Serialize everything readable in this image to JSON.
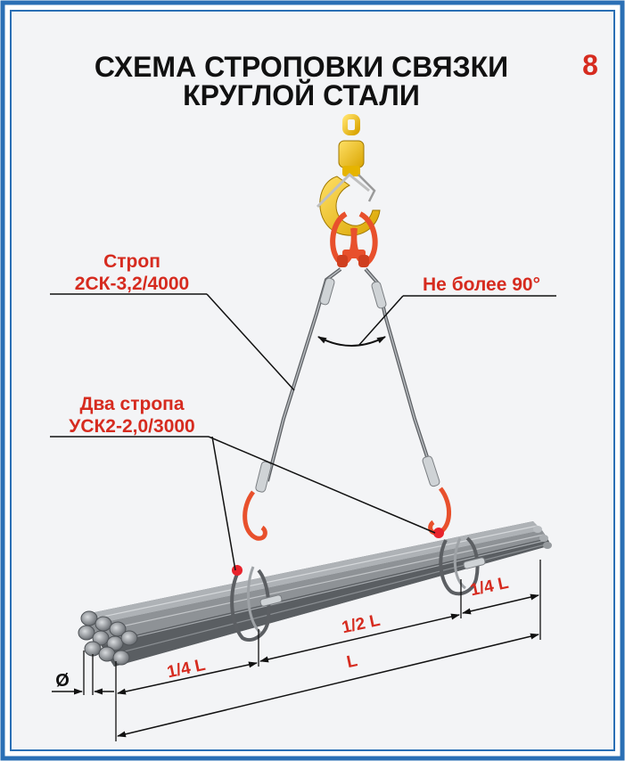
{
  "title": {
    "line1": "СХЕМА СТРОПОВКИ СВЯЗКИ",
    "line2": "КРУГЛОЙ СТАЛИ",
    "number": "8"
  },
  "labels": {
    "sling_main_line1": "Строп",
    "sling_main_line2": "2СК-3,2/4000",
    "angle": "Не более 90°",
    "two_slings_line1": "Два стропа",
    "two_slings_line2": "УСК2-2,0/3000"
  },
  "dimensions": {
    "quarter_left": "1/4 L",
    "half": "1/2 L",
    "quarter_right": "1/4 L",
    "total": "L",
    "diameter": "Ø"
  },
  "colors": {
    "frame": "#2a6fb5",
    "accent_red": "#d62b1f",
    "hook_yellow": "#f2c200",
    "steel": "#8a8e92"
  }
}
